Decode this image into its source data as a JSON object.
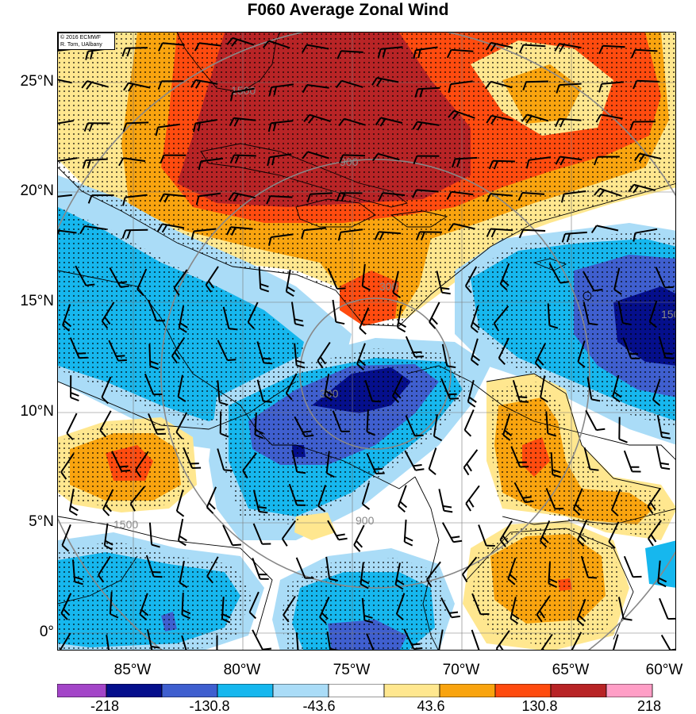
{
  "title": "F060 Average Zonal Wind",
  "credit": [
    "© 2016 ECMWF",
    "R. Torn, UAlbany"
  ],
  "lat_labels": [
    "25°N",
    "20°N",
    "15°N",
    "10°N",
    "5°N",
    "0°"
  ],
  "lon_labels": [
    "85°W",
    "80°W",
    "75°W",
    "70°W",
    "65°W",
    "60°W"
  ],
  "colorbar": {
    "colors": [
      "#a345c8",
      "#050f8c",
      "#3f5fcf",
      "#16b7ee",
      "#aadcf7",
      "#ffffff",
      "#ffe78f",
      "#f9a40f",
      "#ff4b0f",
      "#b82426",
      "#ff9ec6"
    ],
    "labels": [
      "-218",
      "-130.8",
      "-43.6",
      "43.6",
      "130.8",
      "218"
    ]
  },
  "distance_ring_labels": [
    "300",
    "900",
    "1500"
  ],
  "map": {
    "projection": "lat-lon",
    "lat_range": [
      -0.6,
      27.3
    ],
    "lon_range": [
      -88.2,
      -60.0
    ],
    "field": "average zonal wind",
    "contour_levels": [
      -218,
      -174.4,
      -130.8,
      -87.2,
      -43.6,
      0,
      43.6,
      87.2,
      130.8,
      174.4,
      218
    ],
    "features": [
      "stippling = significant regions",
      "wind barbs",
      "coastlines",
      "range rings centered near 13°N 74°W"
    ]
  }
}
